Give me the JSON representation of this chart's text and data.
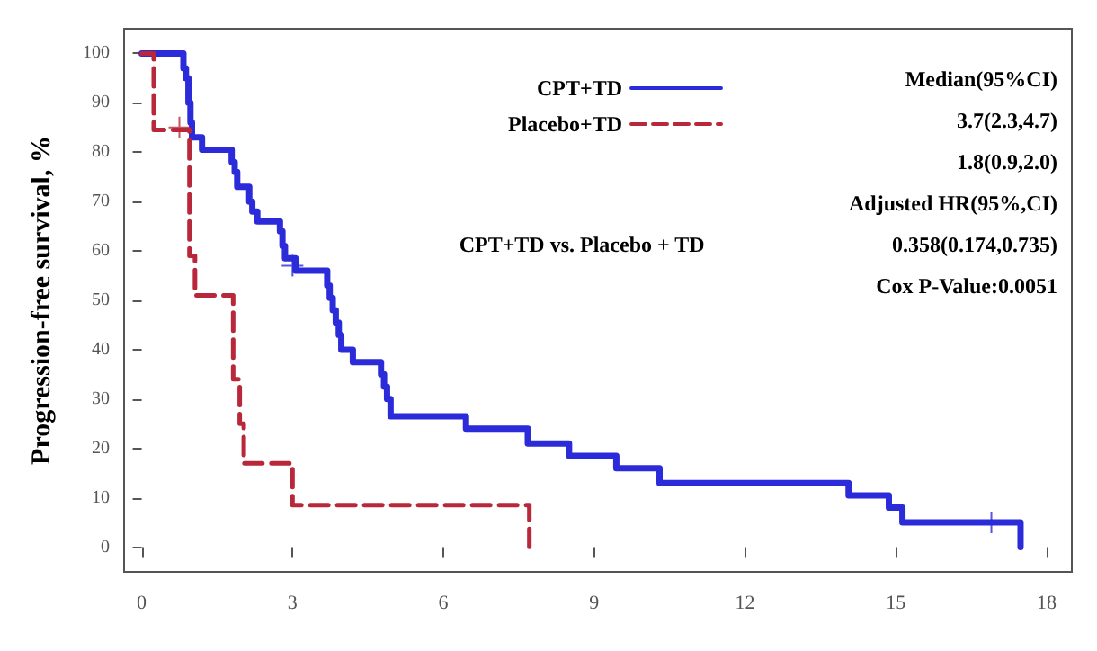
{
  "chart_data": {
    "type": "step",
    "ylabel": "Progression-free survival, %",
    "xlim": [
      -0.35,
      18.5
    ],
    "ylim": [
      -5,
      105
    ],
    "xticks": [
      0,
      3,
      6,
      9,
      12,
      15,
      18
    ],
    "yticks": [
      0,
      10,
      20,
      30,
      40,
      50,
      60,
      70,
      80,
      90,
      100
    ],
    "grid": false,
    "legend": "top right",
    "series": [
      {
        "name": "CPT+TD",
        "color": "#2b2bd9",
        "line_style": "solid",
        "x": [
          0,
          0.83,
          0.88,
          0.93,
          0.97,
          1.0,
          1.2,
          1.79,
          1.85,
          1.9,
          2.14,
          2.2,
          2.3,
          2.75,
          2.8,
          2.85,
          3.06,
          3.69,
          3.74,
          3.8,
          3.86,
          3.92,
          3.97,
          4.2,
          4.76,
          4.82,
          4.88,
          4.95,
          6.45,
          7.68,
          8.5,
          9.44,
          10.3,
          14.06,
          14.86,
          15.13,
          17.48
        ],
        "values": [
          100,
          97,
          95,
          90,
          86,
          83,
          80.5,
          78,
          76,
          73,
          70,
          68,
          66,
          64,
          61,
          58.5,
          56,
          53,
          50.5,
          48,
          45.5,
          43,
          40,
          37.5,
          35,
          32.5,
          30,
          26.5,
          24,
          21,
          18.5,
          16,
          13,
          10.5,
          8,
          5,
          0
        ]
      },
      {
        "name": "Placebo+TD",
        "color": "#b8283a",
        "line_style": "dashed",
        "x": [
          0,
          0.24,
          0.95,
          1.06,
          1.82,
          1.95,
          2.03,
          3.0,
          7.71
        ],
        "values": [
          100,
          84.5,
          59,
          51,
          34,
          25,
          17,
          8.5,
          0
        ]
      },
      {
        "type": "scatter",
        "marker": "cross",
        "color": "#2b2bd9",
        "x": [
          3.0,
          16.9
        ],
        "values": [
          57,
          5
        ]
      },
      {
        "type": "scatter",
        "marker": "cross",
        "color": "#b8283a",
        "x": [
          0.75
        ],
        "values": [
          85
        ]
      }
    ],
    "annotations": [
      "Median(95%CI)",
      "3.7(2.3,4.7)",
      "1.8(0.9,2.0)",
      "CPT+TD vs. Placebo + TD",
      "Adjusted HR(95%,CI)",
      "0.358(0.174,0.735)",
      "Cox P-Value:0.0051"
    ]
  }
}
